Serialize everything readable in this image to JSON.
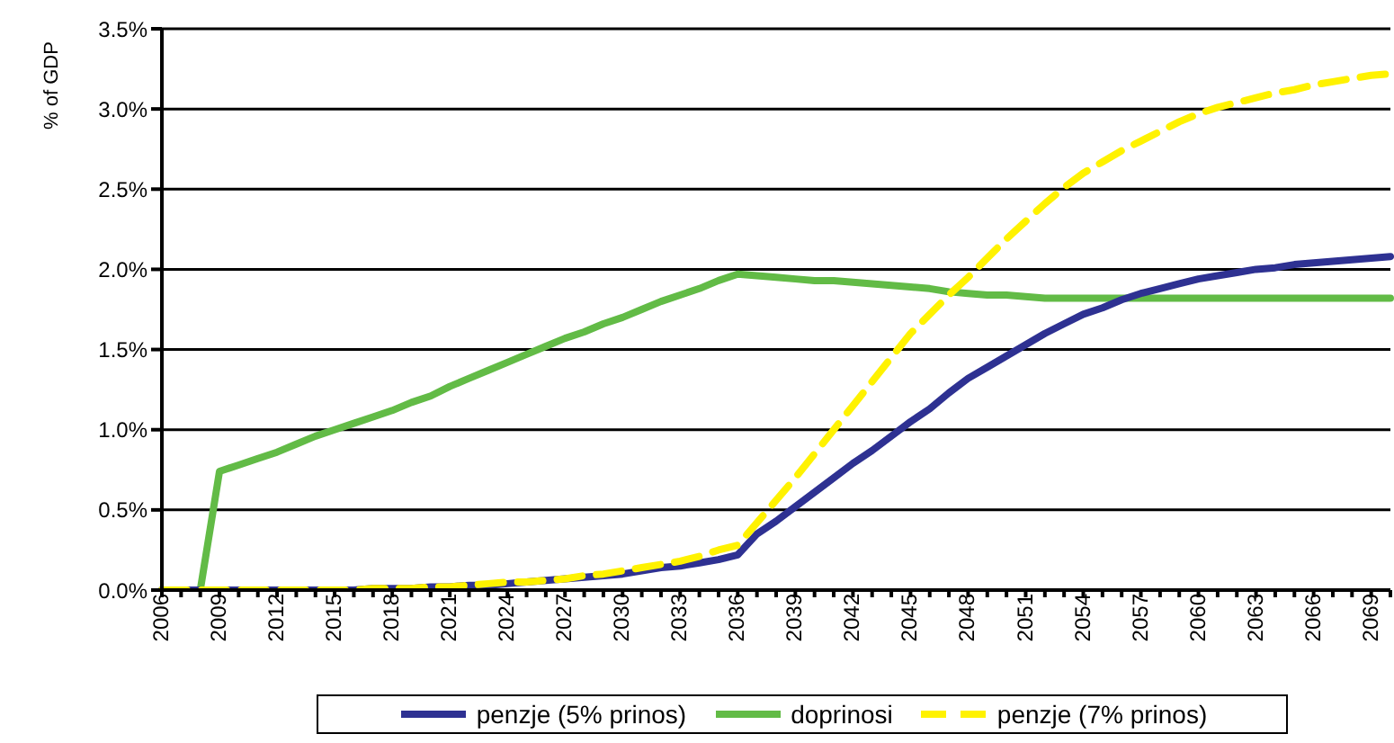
{
  "chart_data": {
    "type": "line",
    "ylabel": "% of GDP",
    "categories": [
      "2006",
      null,
      null,
      "2009",
      null,
      null,
      "2012",
      null,
      null,
      "2015",
      null,
      null,
      "2018",
      null,
      null,
      "2021",
      null,
      null,
      "2024",
      null,
      null,
      "2027",
      null,
      null,
      "2030",
      null,
      null,
      "2033",
      null,
      null,
      "2036",
      null,
      null,
      "2039",
      null,
      null,
      "2042",
      null,
      null,
      "2045",
      null,
      null,
      "2048",
      null,
      null,
      "2051",
      null,
      null,
      "2054",
      null,
      null,
      "2057",
      null,
      null,
      "2060",
      null,
      null,
      "2063",
      null,
      null,
      "2066",
      null,
      null,
      "2069",
      null
    ],
    "series": [
      {
        "name": "penzje (5% prinos)",
        "color": "#2e3192",
        "line_style": "solid",
        "values": [
          0,
          0,
          0,
          0,
          0,
          0,
          0,
          0,
          0,
          0,
          0,
          0.01,
          0.01,
          0.01,
          0.02,
          0.02,
          0.03,
          0.03,
          0.04,
          0.05,
          0.06,
          0.07,
          0.08,
          0.09,
          0.1,
          0.12,
          0.14,
          0.15,
          0.17,
          0.19,
          0.22,
          0.35,
          0.43,
          0.52,
          0.61,
          0.7,
          0.79,
          0.87,
          0.96,
          1.05,
          1.13,
          1.23,
          1.32,
          1.39,
          1.46,
          1.53,
          1.6,
          1.66,
          1.72,
          1.76,
          1.81,
          1.85,
          1.88,
          1.91,
          1.94,
          1.96,
          1.98,
          2.0,
          2.01,
          2.03,
          2.04,
          2.05,
          2.06,
          2.07,
          2.08
        ]
      },
      {
        "name": "doprinosi",
        "color": "#62bb46",
        "line_style": "solid",
        "values": [
          0,
          0,
          0,
          0.74,
          0.78,
          0.82,
          0.86,
          0.91,
          0.96,
          1.0,
          1.04,
          1.08,
          1.12,
          1.17,
          1.21,
          1.27,
          1.32,
          1.37,
          1.42,
          1.47,
          1.52,
          1.57,
          1.61,
          1.66,
          1.7,
          1.75,
          1.8,
          1.84,
          1.88,
          1.93,
          1.97,
          1.96,
          1.95,
          1.94,
          1.93,
          1.93,
          1.92,
          1.91,
          1.9,
          1.89,
          1.88,
          1.86,
          1.85,
          1.84,
          1.84,
          1.83,
          1.82,
          1.82,
          1.82,
          1.82,
          1.82,
          1.82,
          1.82,
          1.82,
          1.82,
          1.82,
          1.82,
          1.82,
          1.82,
          1.82,
          1.82,
          1.82,
          1.82,
          1.82,
          1.82
        ]
      },
      {
        "name": "penzje (7% prinos)",
        "color": "#fff200",
        "line_style": "dashed",
        "values": [
          0,
          0,
          0,
          0,
          0,
          0,
          0,
          0,
          0,
          0,
          0,
          0.01,
          0.01,
          0.01,
          0.02,
          0.02,
          0.03,
          0.04,
          0.05,
          0.05,
          0.06,
          0.07,
          0.09,
          0.1,
          0.12,
          0.14,
          0.16,
          0.18,
          0.21,
          0.25,
          0.28,
          0.42,
          0.56,
          0.7,
          0.85,
          1.0,
          1.15,
          1.3,
          1.45,
          1.6,
          1.72,
          1.84,
          1.95,
          2.07,
          2.19,
          2.3,
          2.41,
          2.51,
          2.6,
          2.67,
          2.74,
          2.8,
          2.86,
          2.92,
          2.97,
          3.01,
          3.04,
          3.07,
          3.1,
          3.12,
          3.15,
          3.17,
          3.19,
          3.21,
          3.22
        ]
      }
    ],
    "ylim": [
      0,
      3.5
    ],
    "yticks": [
      {
        "value": 0,
        "label": "0.0%"
      },
      {
        "value": 0.5,
        "label": "0.5%"
      },
      {
        "value": 1,
        "label": "1.0%"
      },
      {
        "value": 1.5,
        "label": "1.5%"
      },
      {
        "value": 2,
        "label": "2.0%"
      },
      {
        "value": 2.5,
        "label": "2.5%"
      },
      {
        "value": 3,
        "label": "3.0%"
      },
      {
        "value": 3.5,
        "label": "3.5%"
      }
    ],
    "grid": "y",
    "legend": "bottom",
    "marker": "none"
  }
}
